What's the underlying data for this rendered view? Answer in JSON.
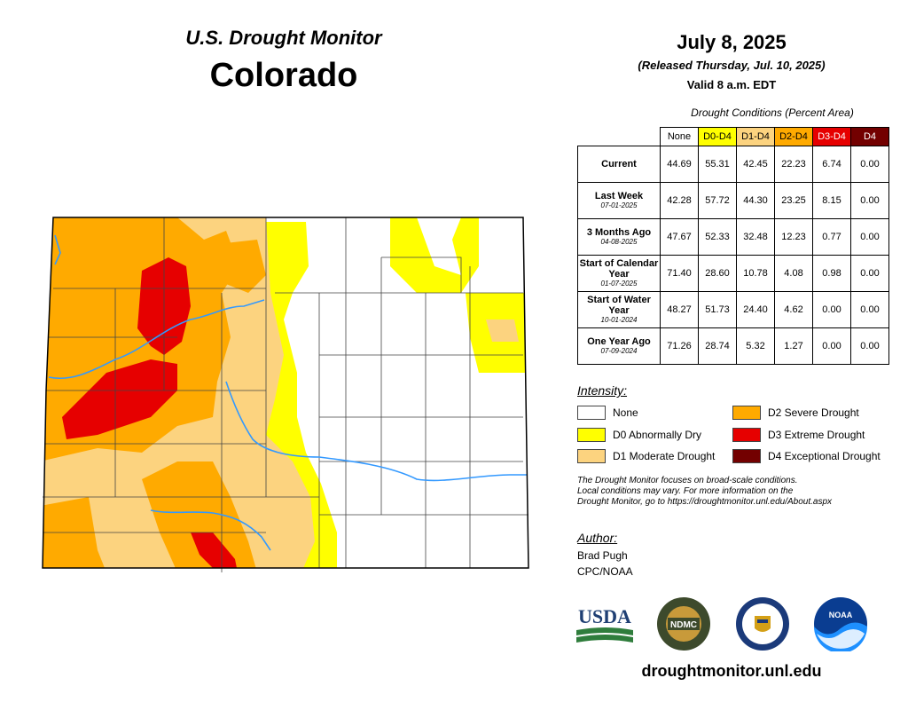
{
  "header": {
    "title_top": "U.S. Drought Monitor",
    "state": "Colorado",
    "date": "July 8, 2025",
    "released": "(Released Thursday, Jul. 10, 2025)",
    "valid": "Valid 8 a.m. EDT"
  },
  "table": {
    "caption": "Drought Conditions (Percent Area)",
    "columns": [
      "None",
      "D0-D4",
      "D1-D4",
      "D2-D4",
      "D3-D4",
      "D4"
    ],
    "column_colors": [
      "#ffffff",
      "#ffff00",
      "#fcd37f",
      "#ffaa00",
      "#e60000",
      "#730000"
    ],
    "rows": [
      {
        "label": "Current",
        "sub": "",
        "values": [
          "44.69",
          "55.31",
          "42.45",
          "22.23",
          "6.74",
          "0.00"
        ]
      },
      {
        "label": "Last Week",
        "sub": "07-01-2025",
        "values": [
          "42.28",
          "57.72",
          "44.30",
          "23.25",
          "8.15",
          "0.00"
        ]
      },
      {
        "label": "3 Months Ago",
        "sub": "04-08-2025",
        "values": [
          "47.67",
          "52.33",
          "32.48",
          "12.23",
          "0.77",
          "0.00"
        ]
      },
      {
        "label": "Start of Calendar Year",
        "sub": "01-07-2025",
        "values": [
          "71.40",
          "28.60",
          "10.78",
          "4.08",
          "0.98",
          "0.00"
        ]
      },
      {
        "label": "Start of Water Year",
        "sub": "10-01-2024",
        "values": [
          "48.27",
          "51.73",
          "24.40",
          "4.62",
          "0.00",
          "0.00"
        ]
      },
      {
        "label": "One Year Ago",
        "sub": "07-09-2024",
        "values": [
          "71.26",
          "28.74",
          "5.32",
          "1.27",
          "0.00",
          "0.00"
        ]
      }
    ]
  },
  "legend": {
    "title": "Intensity:",
    "items": [
      {
        "label": "None",
        "color": "#ffffff"
      },
      {
        "label": "D0 Abnormally Dry",
        "color": "#ffff00"
      },
      {
        "label": "D1 Moderate Drought",
        "color": "#fcd37f"
      },
      {
        "label": "D2 Severe Drought",
        "color": "#ffaa00"
      },
      {
        "label": "D3 Extreme Drought",
        "color": "#e60000"
      },
      {
        "label": "D4 Exceptional Drought",
        "color": "#730000"
      }
    ]
  },
  "disclaimer": [
    "The Drought Monitor focuses on broad-scale conditions.",
    "Local conditions may vary. For more information on the",
    "Drought Monitor, go to https://droughtmonitor.unl.edu/About.aspx"
  ],
  "author": {
    "title": "Author:",
    "name": "Brad Pugh",
    "org": "CPC/NOAA"
  },
  "logos": {
    "usda": "USDA",
    "ndmc": "NDMC",
    "noaa": "NOAA"
  },
  "website": "droughtmonitor.unl.edu"
}
